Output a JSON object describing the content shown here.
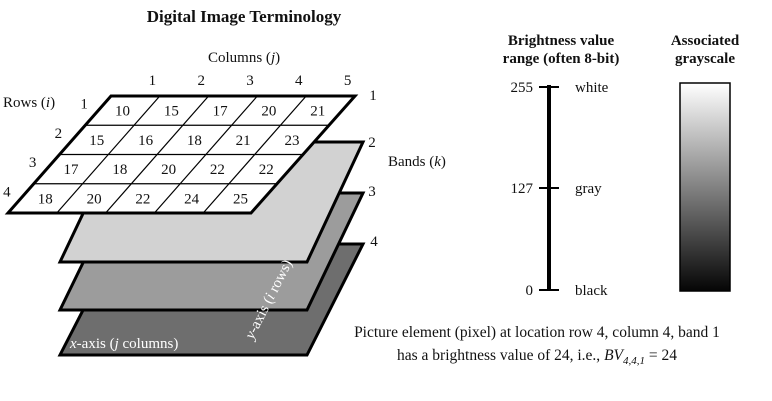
{
  "title": "Digital Image Terminology",
  "columns_label": "Columns (",
  "columns_var": "j",
  "columns_close": ")",
  "rows_label": "Rows (",
  "rows_var": "i",
  "rows_close": ")",
  "bands_label": "Bands (",
  "bands_var": "k",
  "bands_close": ")",
  "column_numbers": [
    "1",
    "2",
    "3",
    "4",
    "5"
  ],
  "row_numbers": [
    "1",
    "2",
    "3",
    "4"
  ],
  "band_numbers": [
    "1",
    "2",
    "3",
    "4"
  ],
  "grid_values": [
    [
      "10",
      "15",
      "17",
      "20",
      "21"
    ],
    [
      "15",
      "16",
      "18",
      "21",
      "23"
    ],
    [
      "17",
      "18",
      "20",
      "22",
      "22"
    ],
    [
      "18",
      "20",
      "22",
      "24",
      "25"
    ]
  ],
  "x_axis_label_var": "x",
  "x_axis_label_mid": "-axis (",
  "x_axis_label_var2": "j",
  "x_axis_label_end": " columns)",
  "y_axis_label_var": "y",
  "y_axis_label_mid": "-axis (",
  "y_axis_label_var2": "i",
  "y_axis_label_end": " rows)",
  "brightness_title_line1": "Brightness value",
  "brightness_title_line2": "range (often 8-bit)",
  "grayscale_title_line1": "Associated",
  "grayscale_title_line2": "grayscale",
  "scale_ticks": [
    {
      "value": "255",
      "label": "white"
    },
    {
      "value": "127",
      "label": "gray"
    },
    {
      "value": "0",
      "label": "black"
    }
  ],
  "caption_line1": "Picture element (pixel) at location row 4, column 4, band 1",
  "caption_line2_prefix": "has a brightness value of 24, i.e., ",
  "caption_bv": "BV",
  "caption_subscript": "4,4,1",
  "caption_suffix": " = 24"
}
